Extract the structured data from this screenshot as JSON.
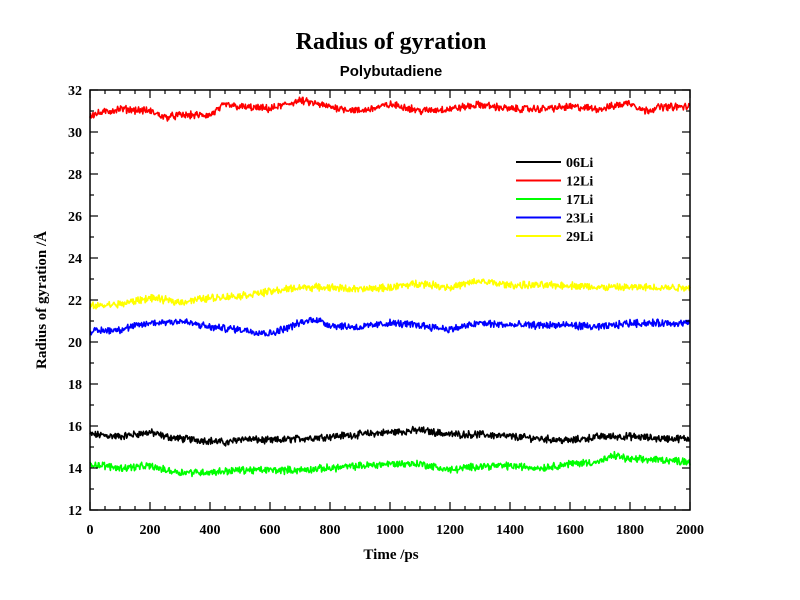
{
  "chart_data": {
    "type": "line",
    "title": "Radius of gyration",
    "subtitle": "Polybutadiene",
    "xlabel": "Time /ps",
    "ylabel": "Radius of gyration /Å",
    "xlim": [
      0,
      2000
    ],
    "ylim": [
      12,
      32
    ],
    "xticks": [
      0,
      200,
      400,
      600,
      800,
      1000,
      1200,
      1400,
      1600,
      1800,
      2000
    ],
    "yticks": [
      12,
      14,
      16,
      18,
      20,
      22,
      24,
      26,
      28,
      30,
      32
    ],
    "grid": false,
    "legend_position": "upper-right-inside",
    "series": [
      {
        "name": "06Li",
        "color": "#000000",
        "x": [
          0,
          100,
          200,
          250,
          300,
          400,
          460,
          500,
          600,
          700,
          800,
          900,
          1000,
          1100,
          1200,
          1300,
          1400,
          1500,
          1600,
          1700,
          1800,
          1900,
          2000
        ],
        "y": [
          15.6,
          15.5,
          15.7,
          15.5,
          15.4,
          15.3,
          15.2,
          15.4,
          15.3,
          15.4,
          15.5,
          15.6,
          15.7,
          15.8,
          15.6,
          15.6,
          15.5,
          15.4,
          15.3,
          15.5,
          15.5,
          15.4,
          15.4
        ]
      },
      {
        "name": "12Li",
        "color": "#ff0000",
        "x": [
          0,
          100,
          200,
          250,
          300,
          400,
          450,
          500,
          600,
          700,
          800,
          900,
          1000,
          1050,
          1100,
          1200,
          1300,
          1400,
          1500,
          1600,
          1700,
          1800,
          1850,
          1900,
          2000
        ],
        "y": [
          30.8,
          31.1,
          31.0,
          30.7,
          30.8,
          30.8,
          31.3,
          31.2,
          31.1,
          31.5,
          31.2,
          31.0,
          31.3,
          31.2,
          31.0,
          31.1,
          31.3,
          31.1,
          31.1,
          31.2,
          31.1,
          31.4,
          31.0,
          31.2,
          31.2
        ]
      },
      {
        "name": "17Li",
        "color": "#00ff00",
        "x": [
          0,
          100,
          200,
          250,
          300,
          400,
          500,
          600,
          700,
          800,
          900,
          1000,
          1100,
          1200,
          1300,
          1400,
          1500,
          1600,
          1700,
          1750,
          1800,
          1900,
          2000
        ],
        "y": [
          14.2,
          14.0,
          14.1,
          13.9,
          13.8,
          13.8,
          13.9,
          13.9,
          13.9,
          14.0,
          14.1,
          14.2,
          14.2,
          13.9,
          14.1,
          14.1,
          14.0,
          14.2,
          14.3,
          14.6,
          14.4,
          14.4,
          14.3
        ]
      },
      {
        "name": "23Li",
        "color": "#0000ff",
        "x": [
          0,
          100,
          200,
          300,
          400,
          500,
          600,
          700,
          750,
          800,
          900,
          1000,
          1100,
          1200,
          1300,
          1400,
          1500,
          1600,
          1700,
          1800,
          1900,
          2000
        ],
        "y": [
          20.5,
          20.6,
          20.9,
          21.0,
          20.7,
          20.6,
          20.4,
          20.9,
          21.1,
          20.8,
          20.7,
          20.9,
          20.8,
          20.6,
          20.9,
          20.8,
          20.8,
          20.8,
          20.7,
          20.9,
          20.9,
          20.9
        ]
      },
      {
        "name": "29Li",
        "color": "#ffff00",
        "x": [
          0,
          100,
          200,
          300,
          400,
          500,
          600,
          700,
          800,
          900,
          1000,
          1100,
          1200,
          1300,
          1400,
          1500,
          1600,
          1700,
          1800,
          1900,
          2000
        ],
        "y": [
          21.7,
          21.8,
          22.1,
          21.9,
          22.1,
          22.2,
          22.4,
          22.6,
          22.6,
          22.5,
          22.6,
          22.8,
          22.6,
          22.9,
          22.7,
          22.7,
          22.7,
          22.6,
          22.6,
          22.6,
          22.6
        ]
      }
    ]
  }
}
